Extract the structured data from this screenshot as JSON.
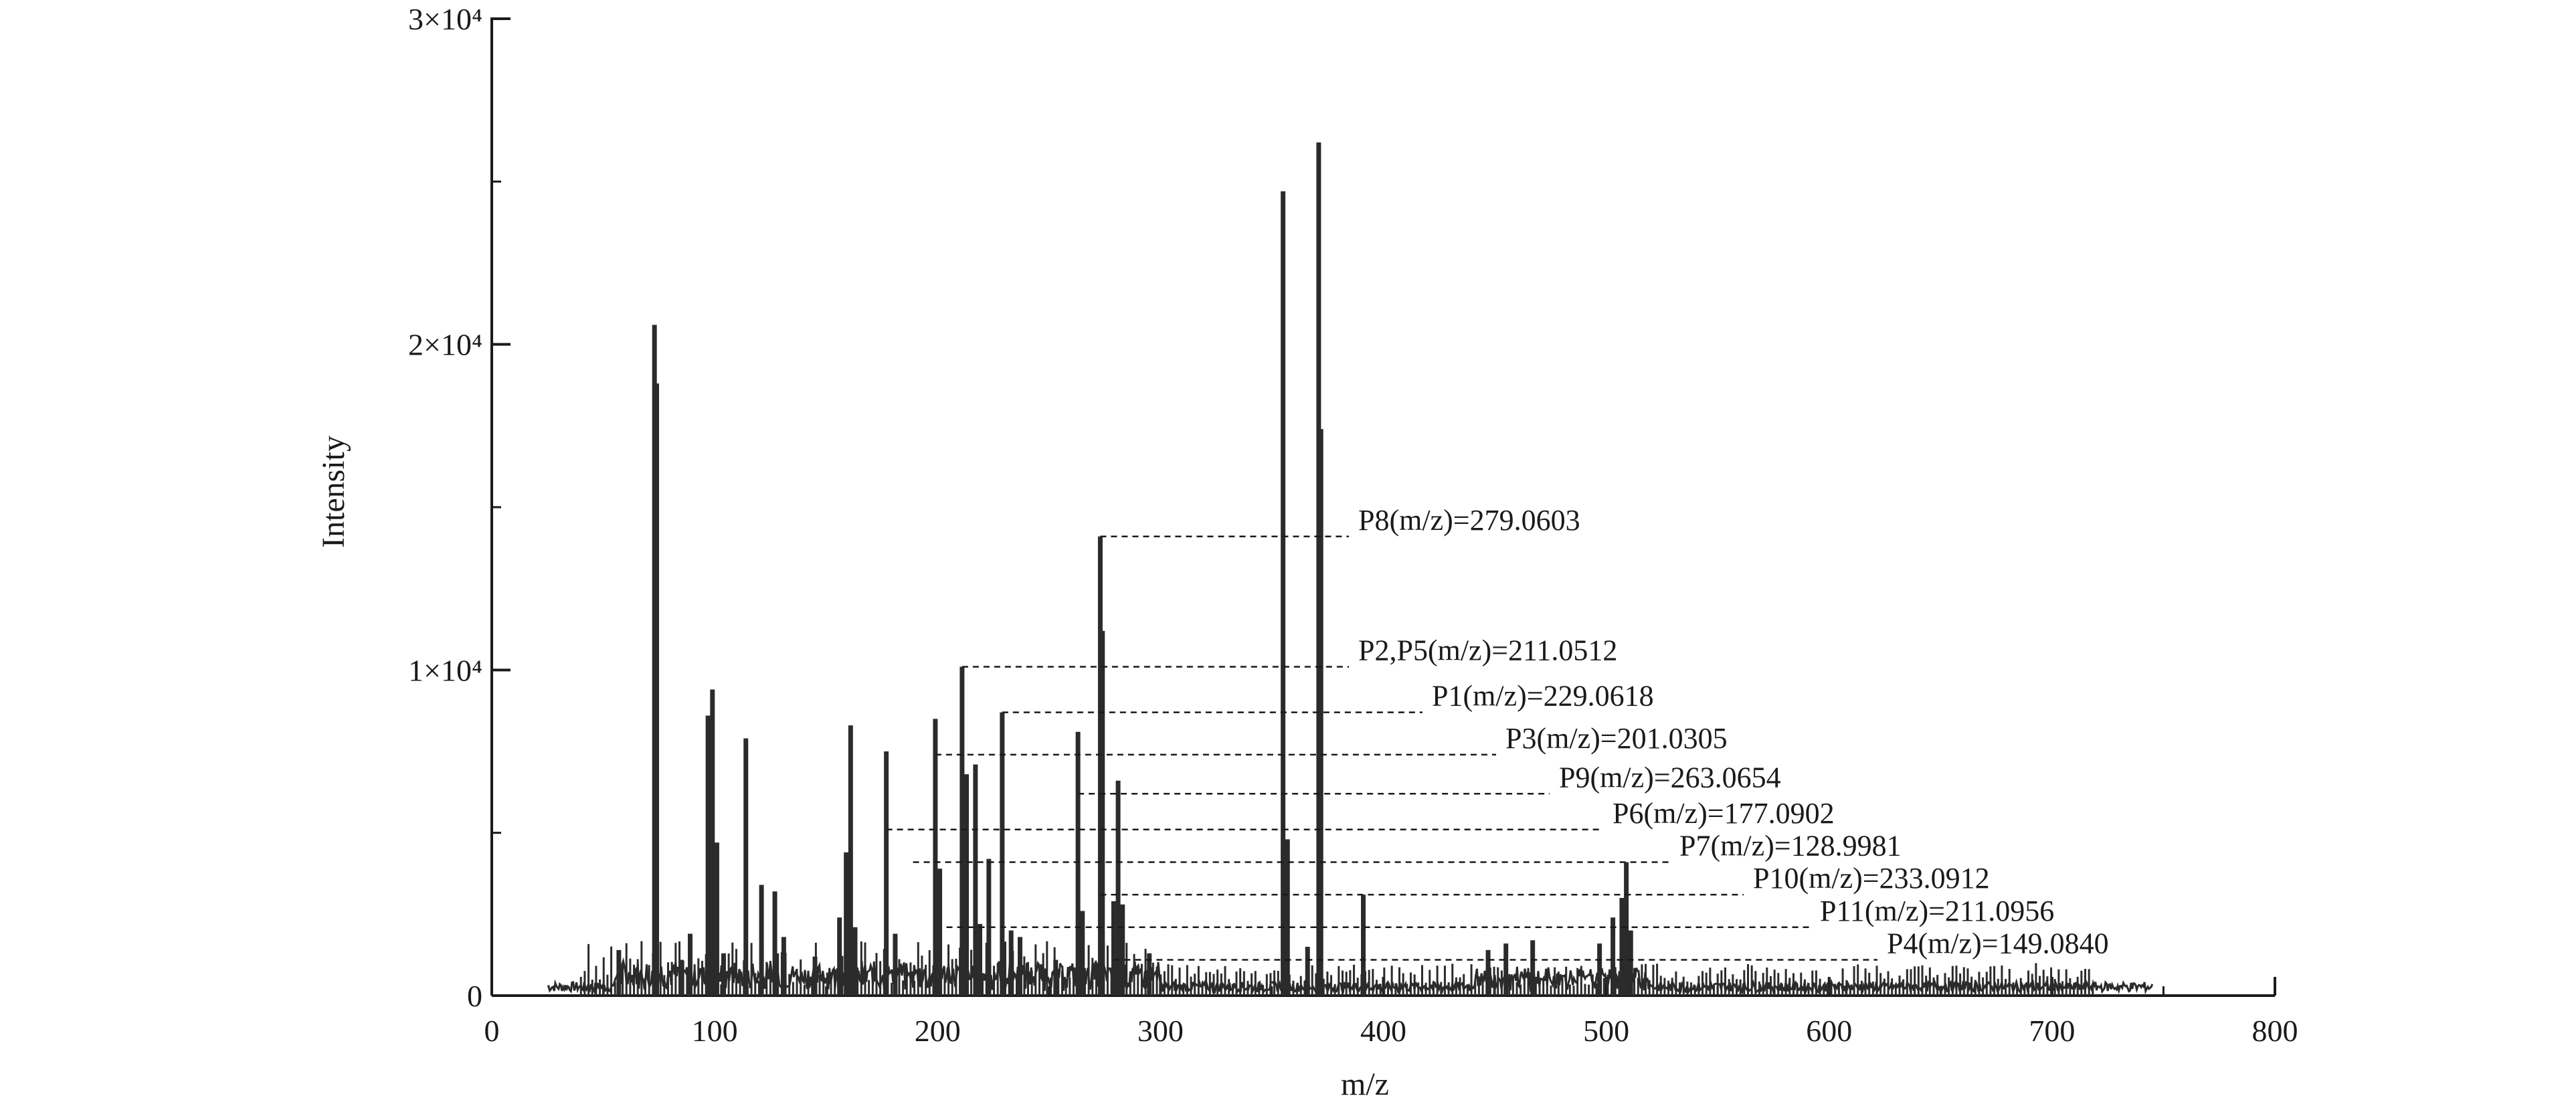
{
  "chart_data": {
    "type": "line",
    "title": "",
    "xlabel": "m/z",
    "ylabel": "Intensity",
    "xlim": [
      0,
      800
    ],
    "ylim": [
      0,
      30000
    ],
    "grid": false,
    "x_ticks": [
      {
        "value": 0,
        "label": "0"
      },
      {
        "value": 100,
        "label": "100"
      },
      {
        "value": 200,
        "label": "200"
      },
      {
        "value": 300,
        "label": "300"
      },
      {
        "value": 400,
        "label": "400"
      },
      {
        "value": 500,
        "label": "500"
      },
      {
        "value": 600,
        "label": "600"
      },
      {
        "value": 700,
        "label": "700"
      },
      {
        "value": 800,
        "label": "800"
      }
    ],
    "y_ticks": [
      {
        "value": 0,
        "label": "0"
      },
      {
        "value": 10000,
        "label": "1×10⁴"
      },
      {
        "value": 20000,
        "label": "2×10⁴"
      },
      {
        "value": 30000,
        "label": "3×10⁴"
      }
    ],
    "color": "#2b2b2b",
    "peaks": [
      {
        "x": 57,
        "y": 1400
      },
      {
        "x": 73,
        "y": 20600
      },
      {
        "x": 74,
        "y": 18800
      },
      {
        "x": 85,
        "y": 1100
      },
      {
        "x": 89,
        "y": 1900
      },
      {
        "x": 97,
        "y": 8600
      },
      {
        "x": 99,
        "y": 9400
      },
      {
        "x": 101,
        "y": 4700
      },
      {
        "x": 104,
        "y": 1300
      },
      {
        "x": 114,
        "y": 7900
      },
      {
        "x": 121,
        "y": 3400
      },
      {
        "x": 127,
        "y": 3200
      },
      {
        "x": 131,
        "y": 1800
      },
      {
        "x": 145,
        "y": 1200
      },
      {
        "x": 156,
        "y": 2400
      },
      {
        "x": 159,
        "y": 4400
      },
      {
        "x": 161,
        "y": 8300
      },
      {
        "x": 163,
        "y": 2100
      },
      {
        "x": 177,
        "y": 7500
      },
      {
        "x": 181,
        "y": 1900
      },
      {
        "x": 199,
        "y": 8500
      },
      {
        "x": 201,
        "y": 3900
      },
      {
        "x": 211,
        "y": 10100
      },
      {
        "x": 213,
        "y": 6800
      },
      {
        "x": 217,
        "y": 7100
      },
      {
        "x": 219,
        "y": 2200
      },
      {
        "x": 223,
        "y": 4200
      },
      {
        "x": 229,
        "y": 8700
      },
      {
        "x": 233,
        "y": 2000
      },
      {
        "x": 237,
        "y": 1800
      },
      {
        "x": 253,
        "y": 1100
      },
      {
        "x": 263,
        "y": 8100
      },
      {
        "x": 265,
        "y": 2600
      },
      {
        "x": 273,
        "y": 14100
      },
      {
        "x": 274,
        "y": 11200
      },
      {
        "x": 279,
        "y": 2900
      },
      {
        "x": 281,
        "y": 6600
      },
      {
        "x": 283,
        "y": 2800
      },
      {
        "x": 295,
        "y": 1300
      },
      {
        "x": 355,
        "y": 24700
      },
      {
        "x": 357,
        "y": 4800
      },
      {
        "x": 366,
        "y": 1500
      },
      {
        "x": 371,
        "y": 26200
      },
      {
        "x": 372,
        "y": 17400
      },
      {
        "x": 391,
        "y": 3100
      },
      {
        "x": 447,
        "y": 1400
      },
      {
        "x": 455,
        "y": 1600
      },
      {
        "x": 467,
        "y": 1700
      },
      {
        "x": 497,
        "y": 1600
      },
      {
        "x": 503,
        "y": 2400
      },
      {
        "x": 507,
        "y": 3000
      },
      {
        "x": 509,
        "y": 4100
      },
      {
        "x": 511,
        "y": 2000
      }
    ],
    "annotations": [
      {
        "label": "P8(m/z)=279.0603",
        "x": 273,
        "y": 14100
      },
      {
        "label": "P2,P5(m/z)=211.0512",
        "x": 211,
        "y": 10100
      },
      {
        "label": "P1(m/z)=229.0618",
        "x": 229,
        "y": 8700
      },
      {
        "label": "P3(m/z)=201.0305",
        "x": 199,
        "y": 7400
      },
      {
        "label": "P9(m/z)=263.0654",
        "x": 263,
        "y": 6200
      },
      {
        "label": "P6(m/z)=177.0902",
        "x": 177,
        "y": 5100
      },
      {
        "label": "P7(m/z)=128.9981",
        "x": 189,
        "y": 4100
      },
      {
        "label": "P10(m/z)=233.0912",
        "x": 273,
        "y": 3100
      },
      {
        "label": "P11(m/z)=211.0956",
        "x": 204,
        "y": 2100
      },
      {
        "label": "P4(m/z)=149.0840",
        "x": 279,
        "y": 1100
      }
    ]
  }
}
